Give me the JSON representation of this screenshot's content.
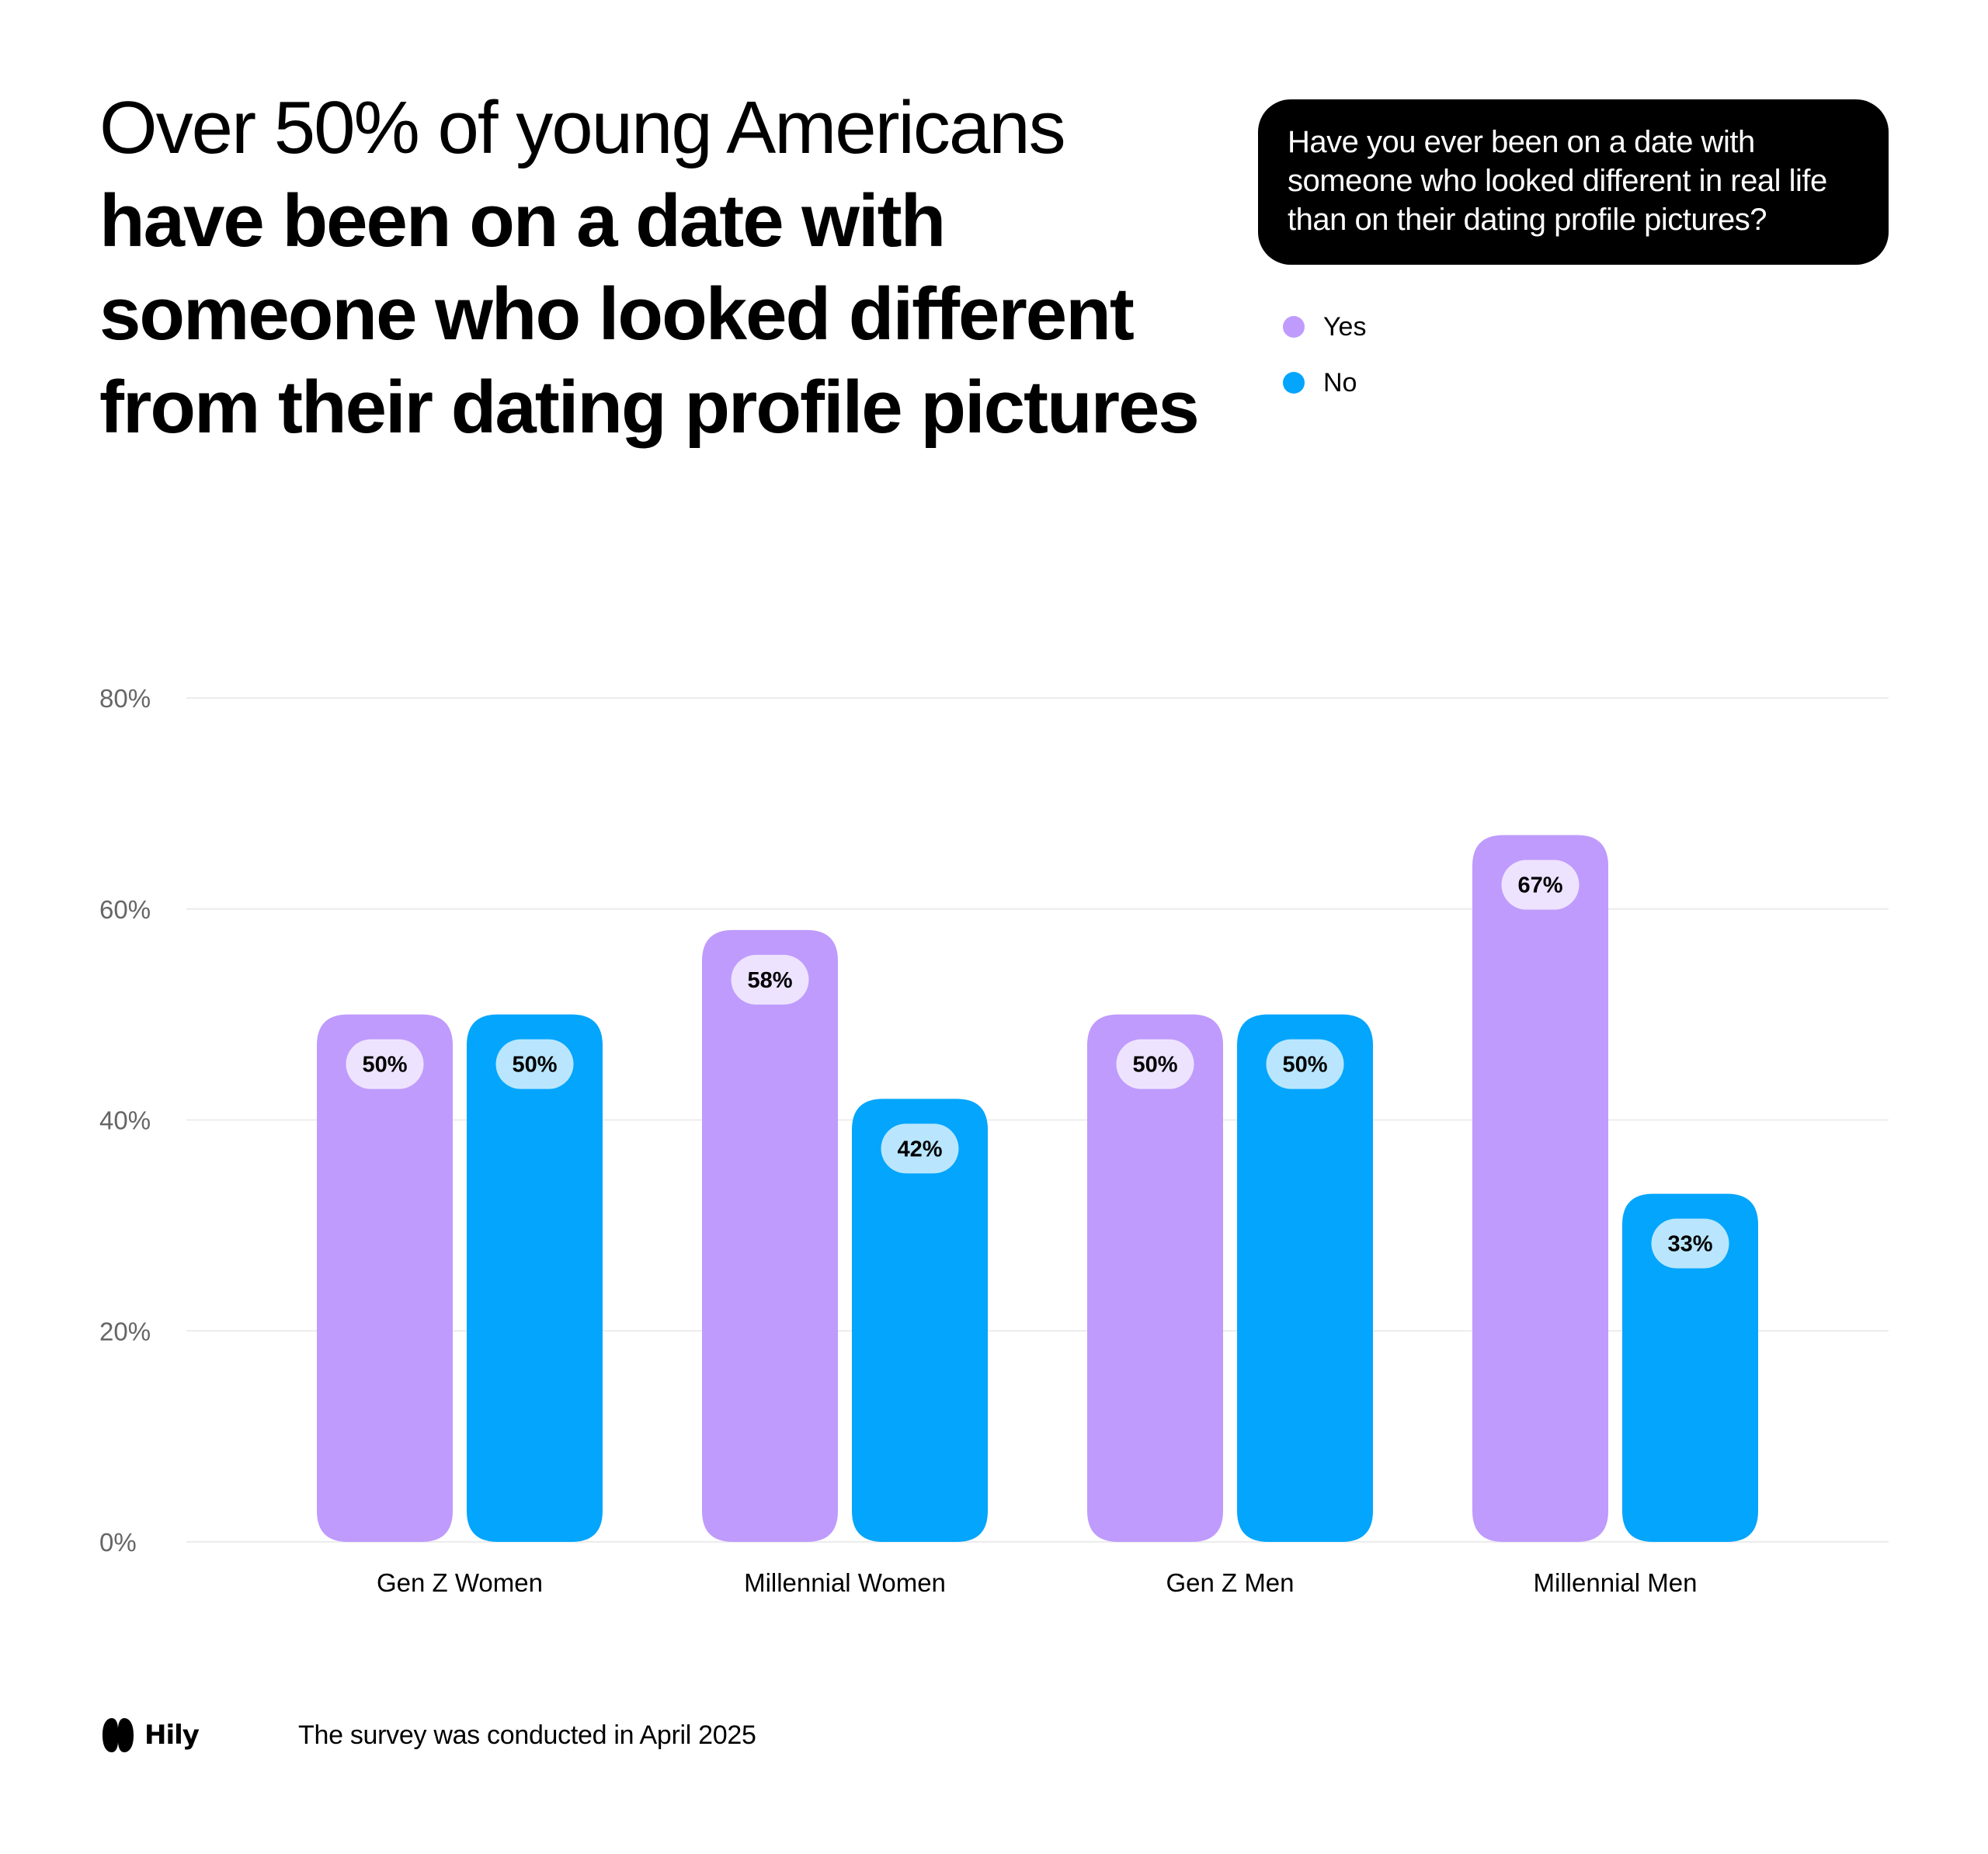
{
  "headline": {
    "light": "Over 50% of young Americans",
    "bold": "have been on a date with someone who looked different from their dating profile pictures"
  },
  "question": "Have you ever been on a date with someone who looked different in real life than on their dating profile pictures?",
  "legend": [
    {
      "label": "Yes",
      "color": "#BF9BFD"
    },
    {
      "label": "No",
      "color": "#04A5FC"
    }
  ],
  "chart_data": {
    "type": "bar",
    "categories": [
      "Gen Z Women",
      "Millennial Women",
      "Gen Z Men",
      "Millennial Men"
    ],
    "series": [
      {
        "name": "Yes",
        "color": "#BF9BFD",
        "values": [
          50,
          58,
          50,
          67
        ],
        "labels": [
          "50%",
          "58%",
          "50%",
          "67%"
        ]
      },
      {
        "name": "No",
        "color": "#04A5FC",
        "values": [
          50,
          42,
          50,
          33
        ],
        "labels": [
          "50%",
          "42%",
          "50%",
          "33%"
        ]
      }
    ],
    "ylim": [
      0,
      80
    ],
    "yticks": [
      0,
      20,
      40,
      60,
      80
    ],
    "ytick_labels": [
      "0%",
      "20%",
      "40%",
      "60%",
      "80%"
    ],
    "grid": true,
    "legend_position": "top-right"
  },
  "footer": {
    "brand": "Hily",
    "note": "The survey was conducted in April 2025"
  }
}
